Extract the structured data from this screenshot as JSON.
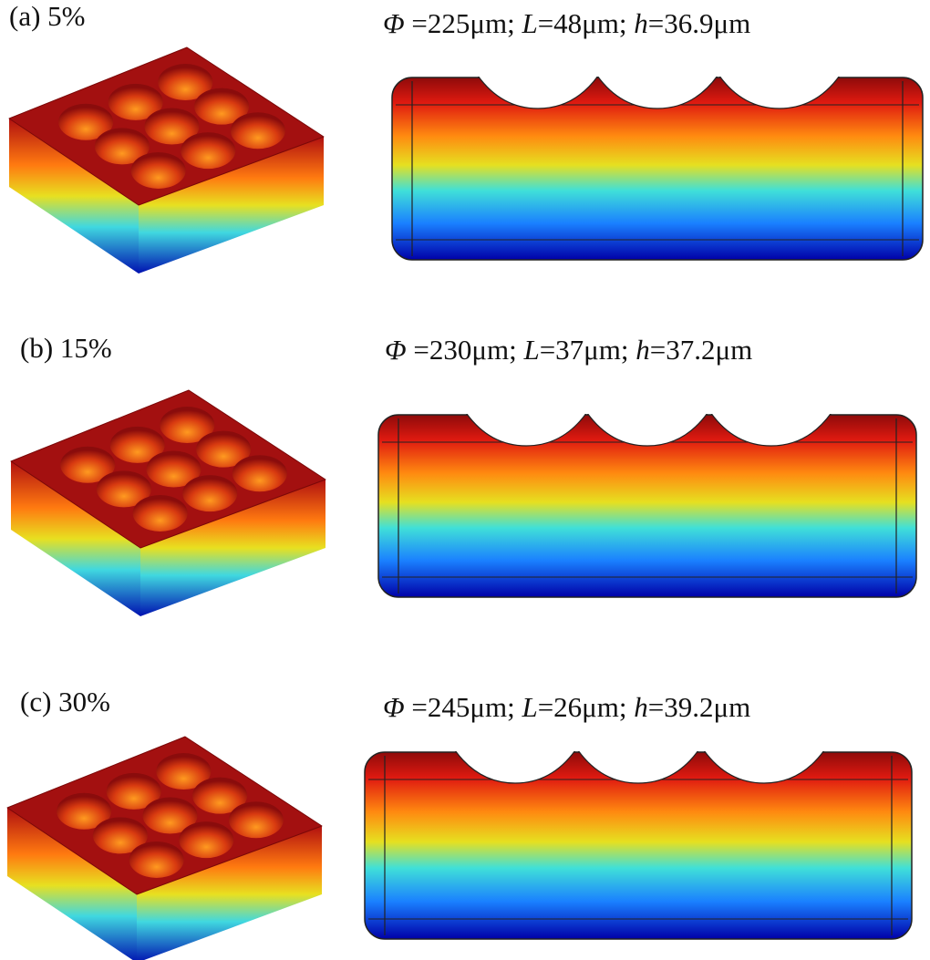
{
  "panels": [
    {
      "label": "(a) 5%",
      "params": [
        "Φ",
        " =225μm; ",
        "L",
        "=48μm; ",
        "h",
        "=36.9μm"
      ]
    },
    {
      "label": "(b) 15%",
      "params": [
        "Φ",
        " =230μm; ",
        "L",
        "=37μm; ",
        "h",
        "=37.2μm"
      ]
    },
    {
      "label": "(c) 30%",
      "params": [
        "Φ",
        " =245μm; ",
        "L",
        "=26μm; ",
        "h",
        "=39.2μm"
      ]
    }
  ]
}
